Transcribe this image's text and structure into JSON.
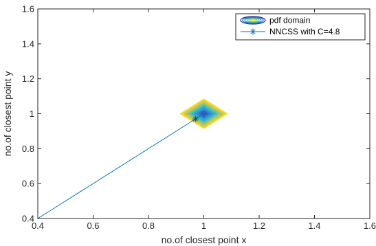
{
  "chart_data": {
    "type": "line",
    "xlabel": "no.of closest point x",
    "ylabel": "no.of closest point y",
    "xlim": [
      0.4,
      1.6
    ],
    "ylim": [
      0.4,
      1.6
    ],
    "x_ticks": [
      0.4,
      0.6,
      0.8,
      1.0,
      1.2,
      1.4,
      1.6
    ],
    "y_ticks": [
      0.4,
      0.6,
      0.8,
      1.0,
      1.2,
      1.4,
      1.6
    ],
    "x_tick_labels": [
      "0.4",
      "0.6",
      "0.8",
      "1",
      "1.2",
      "1.4",
      "1.6"
    ],
    "y_tick_labels": [
      "0.4",
      "0.6",
      "0.8",
      "1",
      "1.2",
      "1.4",
      "1.6"
    ],
    "grid": false,
    "legend_position": "top-right",
    "contour": {
      "name": "pdf domain",
      "center": [
        1.0,
        1.0
      ],
      "radius": 0.085,
      "levels": 14,
      "colormap": [
        "#2c2d99",
        "#1f63c6",
        "#0a93d6",
        "#26b2b6",
        "#7cc46f",
        "#d3bd36",
        "#f9e015"
      ]
    },
    "series": [
      {
        "name": "NNCSS with C=4.8",
        "color": "#0072bd",
        "marker": "asterisk",
        "x": [
          0.4,
          0.97,
          1.0
        ],
        "y": [
          0.4,
          0.97,
          1.0
        ],
        "marker_points": [
          [
            0.97,
            0.97
          ],
          [
            1.0,
            1.0
          ]
        ]
      }
    ]
  }
}
